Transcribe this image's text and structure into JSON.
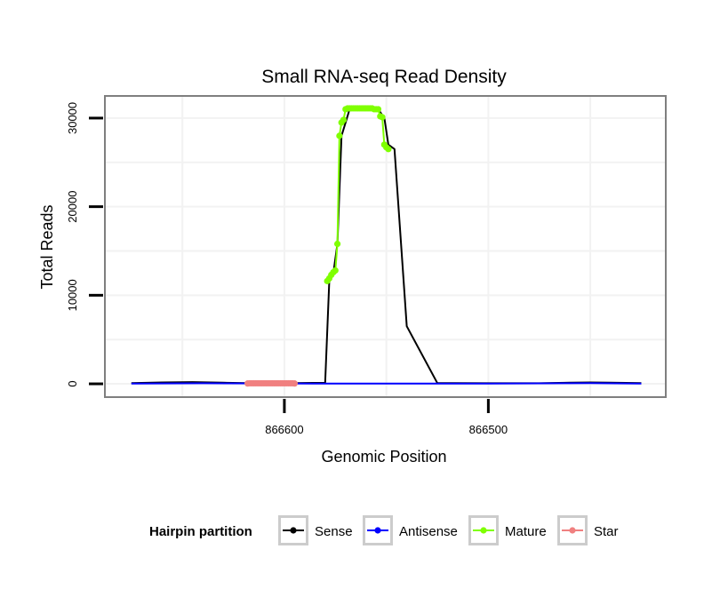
{
  "chart_data": {
    "type": "line",
    "title": "Small RNA-seq Read Density",
    "xlabel": "Genomic Position",
    "ylabel": "Total Reads",
    "x_reversed": true,
    "xlim": [
      866413,
      866688
    ],
    "ylim": [
      -1500,
      32500
    ],
    "x_ticks": [
      866600,
      866500
    ],
    "x_tick_labels": [
      "866600",
      "866500"
    ],
    "y_ticks": [
      0,
      10000,
      20000,
      30000
    ],
    "y_tick_labels": [
      "0",
      "10000",
      "20000",
      "30000"
    ],
    "grid": true,
    "legend": {
      "title": "Hairpin partition",
      "position": "bottom",
      "entries": [
        "Sense",
        "Antisense",
        "Mature",
        "Star"
      ]
    },
    "colors": {
      "Sense": "#000000",
      "Antisense": "#0000ff",
      "Mature": "#7fff00",
      "Star": "#f08080",
      "panel_border": "#7f7f7f",
      "grid": "#f2f2f2"
    },
    "series": [
      {
        "name": "Sense",
        "x": [
          866675,
          866660,
          866645,
          866630,
          866615,
          866600,
          866586,
          866580,
          866578,
          866576,
          866574,
          866572,
          866570,
          866568,
          866566,
          866564,
          866562,
          866560,
          866558,
          866556,
          866554,
          866551,
          866549,
          866546,
          866540,
          866525,
          866500,
          866475,
          866460,
          866450,
          866440,
          866425
        ],
        "y": [
          80,
          150,
          200,
          120,
          60,
          60,
          100,
          100,
          11500,
          12500,
          15800,
          28000,
          29500,
          31000,
          31000,
          31000,
          31000,
          31000,
          31000,
          31000,
          31000,
          30000,
          27000,
          26500,
          6500,
          80,
          60,
          60,
          120,
          150,
          120,
          80
        ]
      },
      {
        "name": "Antisense",
        "x": [
          866675,
          866640,
          866600,
          866586,
          866546,
          866540,
          866500,
          866460,
          866450,
          866425
        ],
        "y": [
          30,
          60,
          40,
          30,
          30,
          30,
          30,
          60,
          80,
          30
        ]
      },
      {
        "name": "Mature",
        "x": [
          866579,
          866578,
          866577,
          866576,
          866575,
          866574,
          866573,
          866572,
          866571,
          866570,
          866569,
          866568,
          866567,
          866566,
          866565,
          866564,
          866563,
          866562,
          866561,
          866560,
          866559,
          866558,
          866557,
          866556,
          866555,
          866554,
          866553,
          866552,
          866551,
          866550,
          866549
        ],
        "y": [
          11600,
          11900,
          12300,
          12600,
          12800,
          15800,
          28000,
          29500,
          29800,
          31000,
          31100,
          31100,
          31100,
          31100,
          31100,
          31100,
          31100,
          31100,
          31100,
          31100,
          31100,
          31100,
          31100,
          31000,
          31000,
          31000,
          30200,
          30100,
          27000,
          26700,
          26500
        ]
      },
      {
        "name": "Star",
        "x": [
          866618,
          866617,
          866616,
          866615,
          866614,
          866613,
          866612,
          866611,
          866610,
          866609,
          866608,
          866607,
          866606,
          866605,
          866604,
          866603,
          866602,
          866601,
          866600,
          866599,
          866598,
          866597,
          866596,
          866595
        ],
        "y": [
          40,
          60,
          60,
          60,
          60,
          60,
          60,
          60,
          60,
          60,
          60,
          60,
          60,
          60,
          60,
          60,
          60,
          60,
          60,
          60,
          60,
          60,
          60,
          40
        ]
      }
    ]
  }
}
